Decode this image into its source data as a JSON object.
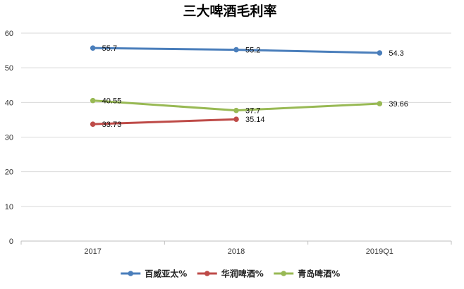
{
  "chart_data": {
    "type": "line",
    "title": "三大啤酒毛利率",
    "categories": [
      "2017",
      "2018",
      "2019Q1"
    ],
    "ylim": [
      0,
      60
    ],
    "yticks": [
      0,
      10,
      20,
      30,
      40,
      50,
      60
    ],
    "grid": true,
    "legend_position": "bottom",
    "series": [
      {
        "name": "百威亚太%",
        "color": "#4a7ebb",
        "values": [
          55.7,
          55.2,
          54.3
        ],
        "labels": [
          "55.7",
          "55.2",
          "54.3"
        ]
      },
      {
        "name": "华润啤酒%",
        "color": "#be4b48",
        "values": [
          33.73,
          35.14,
          null
        ],
        "labels": [
          "33.73",
          "35.14",
          ""
        ]
      },
      {
        "name": "青岛啤酒%",
        "color": "#98b954",
        "values": [
          40.55,
          37.7,
          39.66
        ],
        "labels": [
          "40.55",
          "37.7",
          "39.66"
        ]
      }
    ]
  }
}
